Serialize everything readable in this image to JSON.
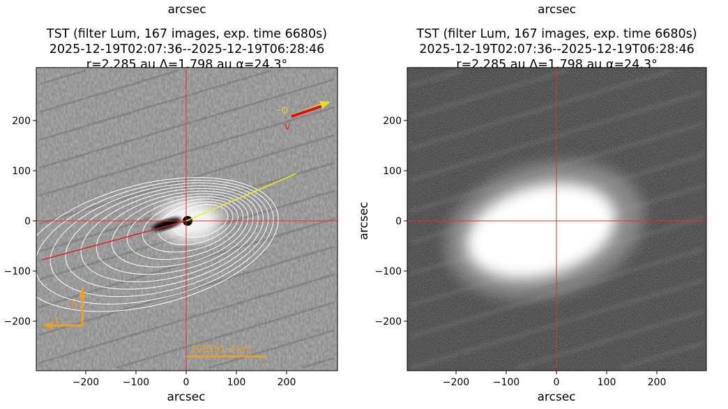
{
  "chart_data": [
    {
      "type": "image",
      "top_label": "arcsec",
      "title_lines": [
        "TST (filter Lum, 167 images, exp. time 6680s)",
        "2025-12-19T02:07:36--2025-12-19T06:28:46",
        "r=2.285 au Δ=1.798 au α=24.3°"
      ],
      "xlabel": "arcsec",
      "ylabel": "",
      "xlim": [
        -300,
        300
      ],
      "ylim": [
        -300,
        300
      ],
      "xticks": [
        -200,
        -100,
        0,
        100,
        200
      ],
      "yticks": [
        -200,
        -100,
        0,
        100,
        200
      ],
      "colormap": "gray",
      "processed": "enhanced (contours)",
      "crosshair_color": "#e03030",
      "antisolar_line_end": [
        -288,
        -78
      ],
      "velocity_line_end": [
        219,
        94
      ],
      "sun_label": "-⊙",
      "velocity_label": "V",
      "compass": {
        "north": "N",
        "east": "E",
        "color": "#f0a020"
      },
      "scale_bar": {
        "label": "208591.3 km",
        "from": 0,
        "to": 160,
        "y": -270,
        "color": "#f0a020"
      }
    },
    {
      "type": "image",
      "top_label": "arcsec",
      "title_lines": [
        "TST (filter Lum, 167 images, exp. time 6680s)",
        "2025-12-19T02:07:36--2025-12-19T06:28:46",
        "r=2.285 au Δ=1.798 au α=24.3°"
      ],
      "xlabel": "arcsec",
      "ylabel": "arcsec",
      "xlim": [
        -300,
        300
      ],
      "ylim": [
        -300,
        300
      ],
      "xticks": [
        -200,
        -100,
        0,
        100,
        200
      ],
      "yticks": [
        -200,
        -100,
        0,
        100,
        200
      ],
      "colormap": "gray",
      "crosshair_color": "#e03030"
    }
  ]
}
